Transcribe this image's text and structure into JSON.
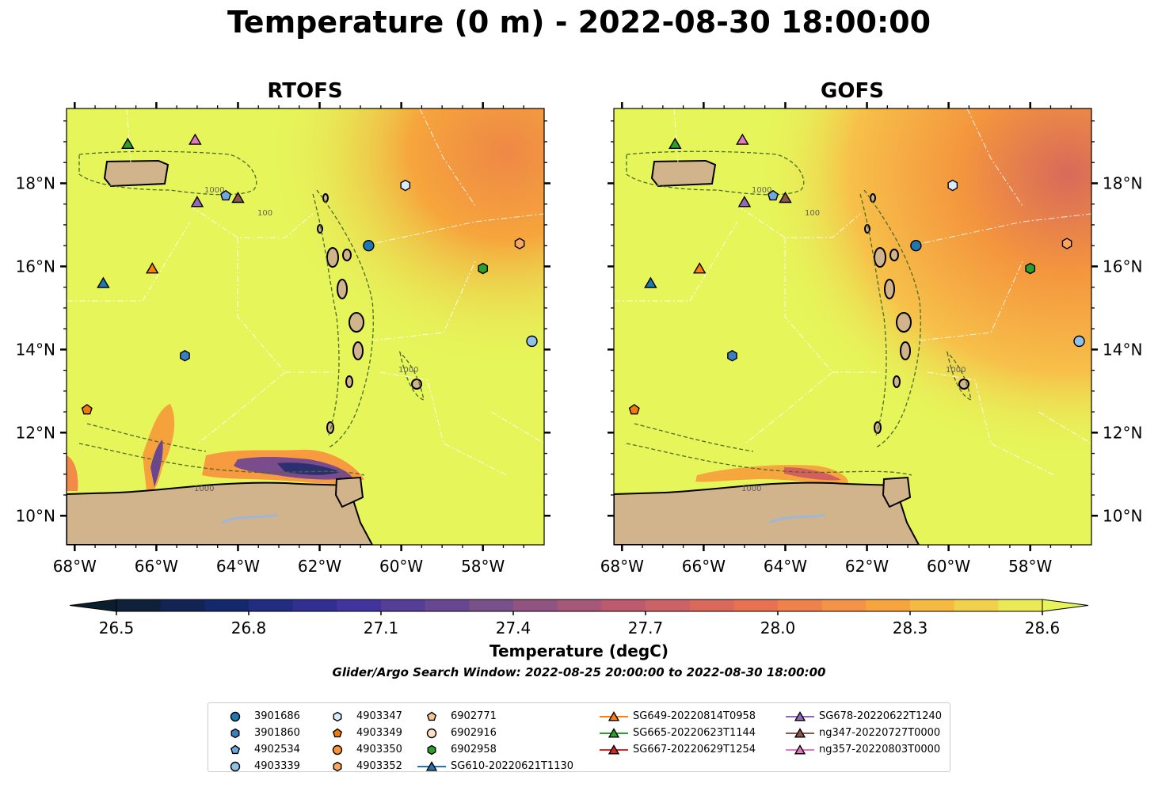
{
  "title": "Temperature (0 m) - 2022-08-30 18:00:00",
  "panels": [
    {
      "title": "RTOFS"
    },
    {
      "title": "GOFS"
    }
  ],
  "lat_labels": [
    "18°N",
    "16°N",
    "14°N",
    "12°N",
    "10°N"
  ],
  "lon_labels": [
    "68°W",
    "66°W",
    "64°W",
    "62°W",
    "60°W",
    "58°W"
  ],
  "contour_labels": [
    "100",
    "1000"
  ],
  "colorbar": {
    "label": "Temperature (degC)",
    "ticks": [
      "26.5",
      "26.8",
      "27.1",
      "27.4",
      "27.7",
      "28.0",
      "28.3",
      "28.6"
    ],
    "min": 26.5,
    "max": 28.6,
    "extend": "both"
  },
  "search_window": "Glider/Argo Search Window: 2022-08-25 20:00:00 to 2022-08-30 18:00:00",
  "colors": {
    "land": "#d2b48c",
    "ocean_warm": "#e6f55a",
    "river": "#9fb6d6"
  },
  "map_extent": {
    "lon": [
      -68.2,
      -56.5
    ],
    "lat": [
      9.3,
      19.8
    ]
  },
  "platforms": [
    {
      "label": "3901686",
      "marker": "circle",
      "color": "#1f77b4",
      "lon": -60.8,
      "lat": 16.5
    },
    {
      "label": "3901860",
      "marker": "hexagon",
      "color": "#3a7fbf",
      "lon": -65.3,
      "lat": 13.85
    },
    {
      "label": "4902534",
      "marker": "pentagon",
      "color": "#6fa8dc",
      "lon": -64.3,
      "lat": 17.7
    },
    {
      "label": "4903339",
      "marker": "circle",
      "color": "#8fc1e9",
      "lon": -56.8,
      "lat": 14.2
    },
    {
      "label": "4903347",
      "marker": "hexagon",
      "color": "#d7ebfa",
      "lon": -59.9,
      "lat": 17.95
    },
    {
      "label": "4903349",
      "marker": "pentagon",
      "color": "#f07c10",
      "lon": -67.7,
      "lat": 12.55
    },
    {
      "label": "4903350",
      "marker": "circle",
      "color": "#f9943a",
      "lon": null,
      "lat": null
    },
    {
      "label": "4903352",
      "marker": "hexagon",
      "color": "#f9a75e",
      "lon": -57.1,
      "lat": 16.55
    },
    {
      "label": "6902771",
      "marker": "pentagon",
      "color": "#fbc590",
      "lon": null,
      "lat": null
    },
    {
      "label": "6902916",
      "marker": "circle",
      "color": "#fde0c6",
      "lon": null,
      "lat": null
    },
    {
      "label": "6902958",
      "marker": "hexagon",
      "color": "#2ca02c",
      "lon": -58.0,
      "lat": 15.95
    },
    {
      "label": "SG610-20220621T1130",
      "marker": "triangle",
      "color": "#1f77b4",
      "lon": -67.3,
      "lat": 15.6
    },
    {
      "label": "SG649-20220814T0958",
      "marker": "triangle",
      "color": "#ff7f0e",
      "lon": -66.1,
      "lat": 15.95
    },
    {
      "label": "SG665-20220623T1144",
      "marker": "triangle",
      "color": "#2ca02c",
      "lon": -66.7,
      "lat": 18.95
    },
    {
      "label": "SG667-20220629T1254",
      "marker": "triangle",
      "color": "#d62728",
      "lon": null,
      "lat": null
    },
    {
      "label": "SG678-20220622T1240",
      "marker": "triangle",
      "color": "#9467bd",
      "lon": -65.0,
      "lat": 17.55
    },
    {
      "label": "ng347-20220727T0000",
      "marker": "triangle",
      "color": "#8c564b",
      "lon": -64.0,
      "lat": 17.65
    },
    {
      "label": "ng357-20220803T0000",
      "marker": "triangle",
      "color": "#e377c2",
      "lon": -65.05,
      "lat": 19.05
    }
  ]
}
